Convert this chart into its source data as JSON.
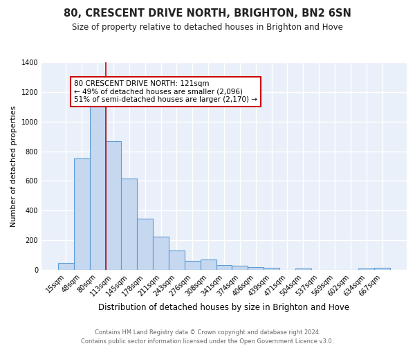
{
  "title": "80, CRESCENT DRIVE NORTH, BRIGHTON, BN2 6SN",
  "subtitle": "Size of property relative to detached houses in Brighton and Hove",
  "xlabel": "Distribution of detached houses by size in Brighton and Hove",
  "ylabel": "Number of detached properties",
  "categories": [
    "15sqm",
    "48sqm",
    "80sqm",
    "113sqm",
    "145sqm",
    "178sqm",
    "211sqm",
    "243sqm",
    "276sqm",
    "308sqm",
    "341sqm",
    "374sqm",
    "406sqm",
    "439sqm",
    "471sqm",
    "504sqm",
    "537sqm",
    "569sqm",
    "602sqm",
    "634sqm",
    "667sqm"
  ],
  "values": [
    47,
    750,
    1100,
    870,
    615,
    345,
    225,
    130,
    60,
    70,
    32,
    28,
    18,
    12,
    0,
    10,
    0,
    0,
    0,
    10,
    12
  ],
  "bar_color": "#c5d8f0",
  "bar_edge_color": "#5b9bd5",
  "background_color": "#eaf0f9",
  "grid_color": "#ffffff",
  "red_line_index": 3,
  "annotation_text": "80 CRESCENT DRIVE NORTH: 121sqm\n← 49% of detached houses are smaller (2,096)\n51% of semi-detached houses are larger (2,170) →",
  "annotation_box_color": "#ffffff",
  "annotation_border_color": "#cc0000",
  "footer": "Contains HM Land Registry data © Crown copyright and database right 2024.\nContains public sector information licensed under the Open Government Licence v3.0.",
  "ylim": [
    0,
    1400
  ],
  "title_fontsize": 10.5,
  "subtitle_fontsize": 8.5,
  "xlabel_fontsize": 8.5,
  "ylabel_fontsize": 8,
  "tick_fontsize": 7,
  "footer_fontsize": 6,
  "annot_fontsize": 7.5
}
